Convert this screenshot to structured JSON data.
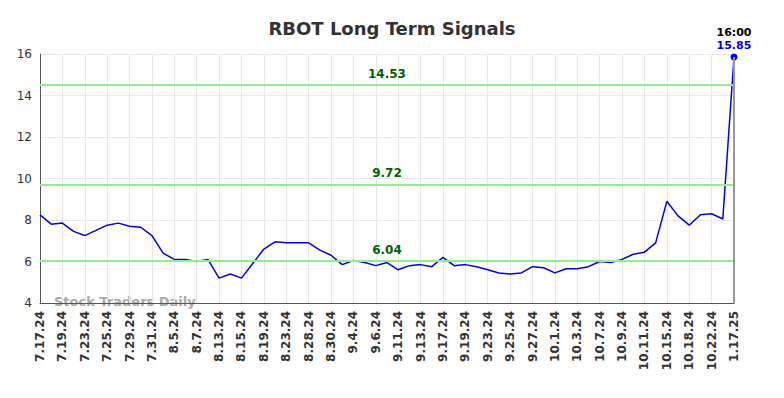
{
  "chart_data": {
    "type": "line",
    "title": "RBOT Long Term Signals",
    "watermark": "Stock Traders Daily",
    "last_time": "16:00",
    "categories": [
      "7.17.24",
      null,
      "7.19.24",
      null,
      "7.23.24",
      null,
      "7.25.24",
      null,
      "7.29.24",
      null,
      "7.31.24",
      null,
      "8.5.24",
      null,
      "8.7.24",
      null,
      "8.13.24",
      null,
      "8.15.24",
      null,
      "8.19.24",
      null,
      "8.23.24",
      null,
      "8.28.24",
      null,
      "8.30.24",
      null,
      "9.4.24",
      null,
      "9.6.24",
      null,
      "9.11.24",
      null,
      "9.13.24",
      null,
      "9.17.24",
      null,
      "9.19.24",
      null,
      "9.23.24",
      null,
      "9.25.24",
      null,
      "9.27.24",
      null,
      "10.1.24",
      null,
      "10.3.24",
      null,
      "10.7.24",
      null,
      "10.9.24",
      null,
      "10.11.24",
      null,
      "10.15.24",
      null,
      "10.18.24",
      null,
      "10.22.24",
      null,
      "1.17.25"
    ],
    "values": [
      8.25,
      7.8,
      7.85,
      7.45,
      7.25,
      7.5,
      7.75,
      7.85,
      7.7,
      7.65,
      7.25,
      6.4,
      6.1,
      6.1,
      6.0,
      6.1,
      5.2,
      5.4,
      5.2,
      5.9,
      6.6,
      6.95,
      6.9,
      6.9,
      6.9,
      6.55,
      6.3,
      5.85,
      6.05,
      5.95,
      5.8,
      5.95,
      5.6,
      5.8,
      5.85,
      5.75,
      6.2,
      5.8,
      5.85,
      5.75,
      5.6,
      5.45,
      5.4,
      5.45,
      5.75,
      5.7,
      5.45,
      5.65,
      5.65,
      5.75,
      6.0,
      5.95,
      6.1,
      6.35,
      6.45,
      6.9,
      8.9,
      8.2,
      7.75,
      8.25,
      8.3,
      8.05,
      15.85
    ],
    "color": "#0000ff",
    "levels": [
      14.53,
      9.72,
      6.04
    ],
    "level_color": "#90ee90",
    "ylim": [
      4,
      16
    ],
    "yticks": [
      4,
      6,
      8,
      10,
      12,
      14,
      16
    ],
    "grid": true
  }
}
